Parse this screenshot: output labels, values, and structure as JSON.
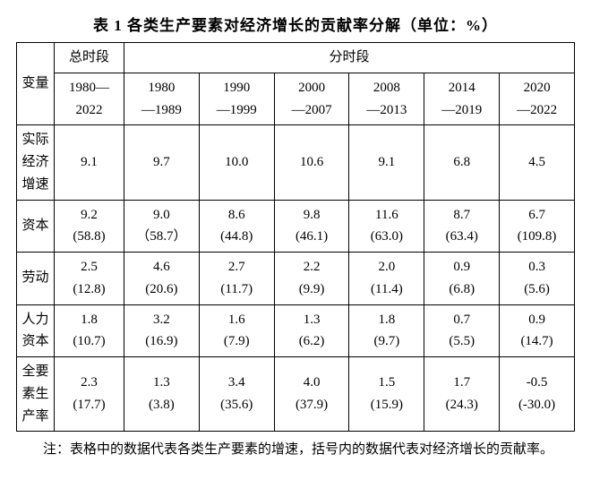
{
  "title": "表 1  各类生产要素对经济增长的贡献率分解（单位：%）",
  "headers": {
    "variable": "变量",
    "totalPeriod": "总时段",
    "subPeriod": "分时段",
    "totalRange": "1980—2022",
    "p1a": "1980",
    "p1b": "—1989",
    "p2a": "1990",
    "p2b": "—1999",
    "p3a": "2000",
    "p3b": "—2007",
    "p4a": "2008",
    "p4b": "—2013",
    "p5a": "2014",
    "p5b": "—2019",
    "p6a": "2020",
    "p6b": "—2022"
  },
  "rows": {
    "r1": {
      "label": "实际经济增速",
      "c0": "9.1",
      "c1": "9.7",
      "c2": "10.0",
      "c3": "10.6",
      "c4": "9.1",
      "c5": "6.8",
      "c6": "4.5"
    },
    "r2": {
      "label": "资本",
      "c0a": "9.2",
      "c0b": "(58.8)",
      "c1a": "9.0",
      "c1b": "（58.7）",
      "c2a": "8.6",
      "c2b": "(44.8)",
      "c3a": "9.8",
      "c3b": "(46.1)",
      "c4a": "11.6",
      "c4b": "(63.0)",
      "c5a": "8.7",
      "c5b": "(63.4)",
      "c6a": "6.7",
      "c6b": "(109.8)"
    },
    "r3": {
      "label": "劳动",
      "c0a": "2.5",
      "c0b": "(12.8)",
      "c1a": "4.6",
      "c1b": "(20.6)",
      "c2a": "2.7",
      "c2b": "(11.7)",
      "c3a": "2.2",
      "c3b": "(9.9)",
      "c4a": "2.0",
      "c4b": "(11.4)",
      "c5a": "0.9",
      "c5b": "(6.8)",
      "c6a": "0.3",
      "c6b": "(5.6)"
    },
    "r4": {
      "label": "人力资本",
      "c0a": "1.8",
      "c0b": "(10.7)",
      "c1a": "3.2",
      "c1b": "(16.9)",
      "c2a": "1.6",
      "c2b": "(7.9)",
      "c3a": "1.3",
      "c3b": "(6.2)",
      "c4a": "1.8",
      "c4b": "(9.7)",
      "c5a": "0.7",
      "c5b": "(5.5)",
      "c6a": "0.9",
      "c6b": "(14.7)"
    },
    "r5": {
      "label": "全要素生产率",
      "c0a": "2.3",
      "c0b": "(17.7)",
      "c1a": "1.3",
      "c1b": "(3.8)",
      "c2a": "3.4",
      "c2b": "(35.6)",
      "c3a": "4.0",
      "c3b": "(37.9)",
      "c4a": "1.5",
      "c4b": "(15.9)",
      "c5a": "1.7",
      "c5b": "(24.3)",
      "c6a": "-0.5",
      "c6b": "(-30.0)"
    }
  },
  "note": "注：表格中的数据代表各类生产要素的增速，括号内的数据代表对经济增长的贡献率。"
}
